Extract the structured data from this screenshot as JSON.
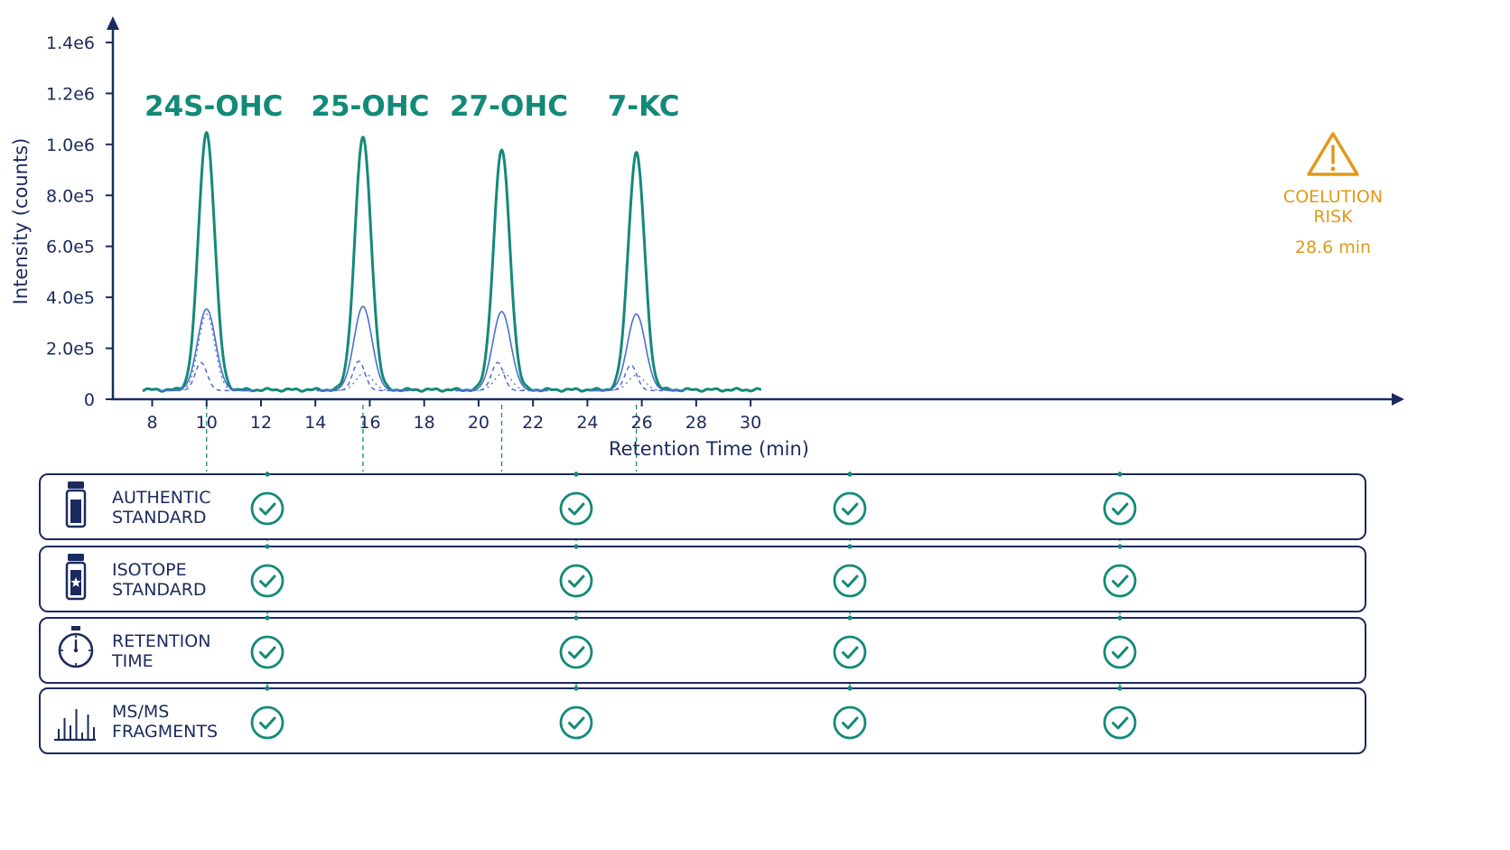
{
  "colors": {
    "navy": "#1b2a5e",
    "teal": "#138a78",
    "blue": "#4a6fd1",
    "orange": "#e09a1a",
    "white": "#ffffff"
  },
  "chart_data": {
    "type": "line",
    "xlabel": "Retention Time (min)",
    "ylabel": "Intensity (counts)",
    "xlim": [
      7.6,
      31.0
    ],
    "ylim": [
      0,
      1400000
    ],
    "x_ticks": [
      8,
      10,
      12,
      14,
      16,
      18,
      20,
      22,
      24,
      26,
      28,
      30
    ],
    "y_ticks": [
      {
        "value": 0,
        "label": "0"
      },
      {
        "value": 200000,
        "label": "2.0e5"
      },
      {
        "value": 400000,
        "label": "4.0e5"
      },
      {
        "value": 600000,
        "label": "6.0e5"
      },
      {
        "value": 800000,
        "label": "8.0e5"
      },
      {
        "value": 1000000,
        "label": "1.0e6"
      },
      {
        "value": 1200000,
        "label": "1.2e6"
      },
      {
        "value": 1400000,
        "label": "1.4e6"
      }
    ],
    "baseline": 30000,
    "x_range": [
      7.65,
      30.4
    ],
    "peaks": [
      {
        "label": "24S-OHC",
        "rt": 10.0,
        "height": 1040000,
        "sigma": 0.3,
        "sub": [
          {
            "rt": 10.0,
            "height": 320000
          },
          {
            "rt": 9.8,
            "height": 110000
          },
          {
            "rt": 10.0,
            "height": 300000
          }
        ]
      },
      {
        "label": "25-OHC",
        "rt": 15.75,
        "height": 1020000,
        "sigma": 0.3,
        "sub": [
          {
            "rt": 15.75,
            "height": 330000
          },
          {
            "rt": 15.6,
            "height": 115000
          },
          {
            "rt": 15.8,
            "height": 70000
          }
        ]
      },
      {
        "label": "27-OHC",
        "rt": 20.85,
        "height": 970000,
        "sigma": 0.3,
        "sub": [
          {
            "rt": 20.85,
            "height": 310000
          },
          {
            "rt": 20.7,
            "height": 110000
          },
          {
            "rt": 20.9,
            "height": 70000
          }
        ]
      },
      {
        "label": "7-KC",
        "rt": 25.8,
        "height": 960000,
        "sigma": 0.3,
        "sub": [
          {
            "rt": 25.8,
            "height": 300000
          },
          {
            "rt": 25.6,
            "height": 100000
          },
          {
            "rt": 25.8,
            "height": 60000
          }
        ]
      }
    ],
    "warning": {
      "line1": "COELUTION",
      "line2": "RISK",
      "time": "28.6 min",
      "icon": "warning-triangle-icon"
    }
  },
  "criteria_rows": [
    {
      "line1": "AUTHENTIC",
      "line2": "STANDARD",
      "icon": "vial-icon"
    },
    {
      "line1": "ISOTOPE",
      "line2": "STANDARD",
      "icon": "vial-star-icon"
    },
    {
      "line1": "RETENTION",
      "line2": "TIME",
      "icon": "stopwatch-icon"
    },
    {
      "line1": "MS/MS",
      "line2": "FRAGMENTS",
      "icon": "spectrum-bars-icon"
    }
  ],
  "check_icon": "check-circle-icon"
}
